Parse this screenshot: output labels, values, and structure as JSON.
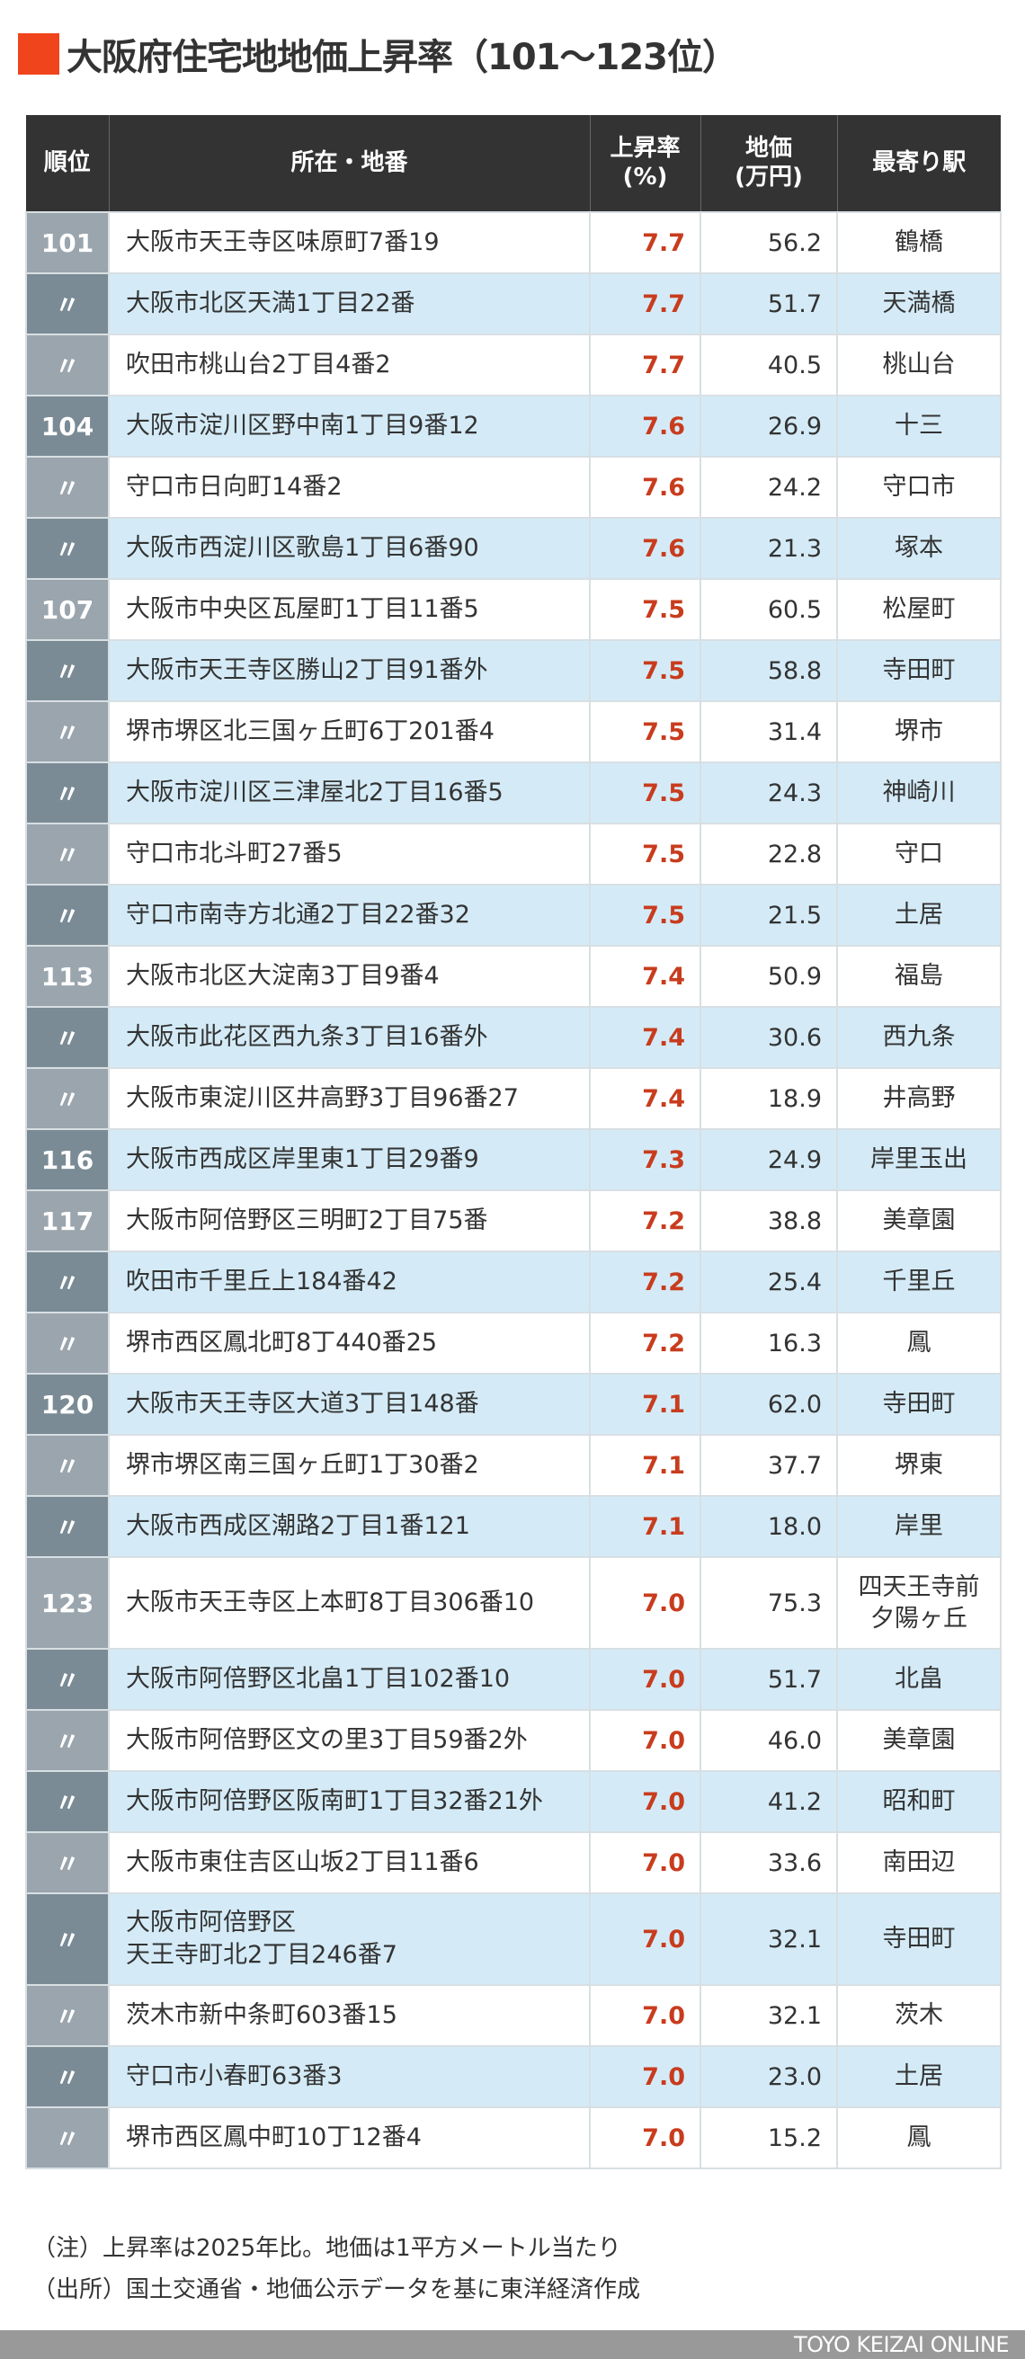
{
  "title": "大阪府住宅地地価上昇率（101〜123位）",
  "colors": {
    "accent": "#f0441c",
    "header_bg": "#333333",
    "row_alt": "#d4ebf7",
    "rank_light": "#9aa5ad",
    "rank_dark": "#7a8b95",
    "rate_text": "#c83c1e"
  },
  "table": {
    "headers": {
      "rank": "順位",
      "address": "所在・地番",
      "rate_line1": "上昇率",
      "rate_line2": "(%)",
      "price_line1": "地価",
      "price_line2": "(万円)",
      "station": "最寄り駅"
    },
    "rows": [
      {
        "rank": "101",
        "address": "大阪市天王寺区味原町7番19",
        "rate": "7.7",
        "price": "56.2",
        "station": "鶴橋"
      },
      {
        "rank": "〃",
        "address": "大阪市北区天満1丁目22番",
        "rate": "7.7",
        "price": "51.7",
        "station": "天満橋"
      },
      {
        "rank": "〃",
        "address": "吹田市桃山台2丁目4番2",
        "rate": "7.7",
        "price": "40.5",
        "station": "桃山台"
      },
      {
        "rank": "104",
        "address": "大阪市淀川区野中南1丁目9番12",
        "rate": "7.6",
        "price": "26.9",
        "station": "十三"
      },
      {
        "rank": "〃",
        "address": "守口市日向町14番2",
        "rate": "7.6",
        "price": "24.2",
        "station": "守口市"
      },
      {
        "rank": "〃",
        "address": "大阪市西淀川区歌島1丁目6番90",
        "rate": "7.6",
        "price": "21.3",
        "station": "塚本"
      },
      {
        "rank": "107",
        "address": "大阪市中央区瓦屋町1丁目11番5",
        "rate": "7.5",
        "price": "60.5",
        "station": "松屋町"
      },
      {
        "rank": "〃",
        "address": "大阪市天王寺区勝山2丁目91番外",
        "rate": "7.5",
        "price": "58.8",
        "station": "寺田町"
      },
      {
        "rank": "〃",
        "address": "堺市堺区北三国ヶ丘町6丁201番4",
        "rate": "7.5",
        "price": "31.4",
        "station": "堺市"
      },
      {
        "rank": "〃",
        "address": "大阪市淀川区三津屋北2丁目16番5",
        "rate": "7.5",
        "price": "24.3",
        "station": "神崎川"
      },
      {
        "rank": "〃",
        "address": "守口市北斗町27番5",
        "rate": "7.5",
        "price": "22.8",
        "station": "守口"
      },
      {
        "rank": "〃",
        "address": "守口市南寺方北通2丁目22番32",
        "rate": "7.5",
        "price": "21.5",
        "station": "土居"
      },
      {
        "rank": "113",
        "address": "大阪市北区大淀南3丁目9番4",
        "rate": "7.4",
        "price": "50.9",
        "station": "福島"
      },
      {
        "rank": "〃",
        "address": "大阪市此花区西九条3丁目16番外",
        "rate": "7.4",
        "price": "30.6",
        "station": "西九条"
      },
      {
        "rank": "〃",
        "address": "大阪市東淀川区井高野3丁目96番27",
        "rate": "7.4",
        "price": "18.9",
        "station": "井高野"
      },
      {
        "rank": "116",
        "address": "大阪市西成区岸里東1丁目29番9",
        "rate": "7.3",
        "price": "24.9",
        "station": "岸里玉出"
      },
      {
        "rank": "117",
        "address": "大阪市阿倍野区三明町2丁目75番",
        "rate": "7.2",
        "price": "38.8",
        "station": "美章園"
      },
      {
        "rank": "〃",
        "address": "吹田市千里丘上184番42",
        "rate": "7.2",
        "price": "25.4",
        "station": "千里丘"
      },
      {
        "rank": "〃",
        "address": "堺市西区鳳北町8丁440番25",
        "rate": "7.2",
        "price": "16.3",
        "station": "鳳"
      },
      {
        "rank": "120",
        "address": "大阪市天王寺区大道3丁目148番",
        "rate": "7.1",
        "price": "62.0",
        "station": "寺田町"
      },
      {
        "rank": "〃",
        "address": "堺市堺区南三国ヶ丘町1丁30番2",
        "rate": "7.1",
        "price": "37.7",
        "station": "堺東"
      },
      {
        "rank": "〃",
        "address": "大阪市西成区潮路2丁目1番121",
        "rate": "7.1",
        "price": "18.0",
        "station": "岸里"
      },
      {
        "rank": "123",
        "address": "大阪市天王寺区上本町8丁目306番10",
        "rate": "7.0",
        "price": "75.3",
        "station": "四天王寺前\n夕陽ヶ丘"
      },
      {
        "rank": "〃",
        "address": "大阪市阿倍野区北畠1丁目102番10",
        "rate": "7.0",
        "price": "51.7",
        "station": "北畠"
      },
      {
        "rank": "〃",
        "address": "大阪市阿倍野区文の里3丁目59番2外",
        "rate": "7.0",
        "price": "46.0",
        "station": "美章園"
      },
      {
        "rank": "〃",
        "address": "大阪市阿倍野区阪南町1丁目32番21外",
        "rate": "7.0",
        "price": "41.2",
        "station": "昭和町"
      },
      {
        "rank": "〃",
        "address": "大阪市東住吉区山坂2丁目11番6",
        "rate": "7.0",
        "price": "33.6",
        "station": "南田辺"
      },
      {
        "rank": "〃",
        "address": "大阪市阿倍野区\n天王寺町北2丁目246番7",
        "rate": "7.0",
        "price": "32.1",
        "station": "寺田町"
      },
      {
        "rank": "〃",
        "address": "茨木市新中条町603番15",
        "rate": "7.0",
        "price": "32.1",
        "station": "茨木"
      },
      {
        "rank": "〃",
        "address": "守口市小春町63番3",
        "rate": "7.0",
        "price": "23.0",
        "station": "土居"
      },
      {
        "rank": "〃",
        "address": "堺市西区鳳中町10丁12番4",
        "rate": "7.0",
        "price": "15.2",
        "station": "鳳"
      }
    ]
  },
  "notes": {
    "note": "（注）上昇率は2025年比。地価は1平方メートル当たり",
    "source": "（出所）国土交通省・地価公示データを基に東洋経済作成"
  },
  "footer": {
    "brand": "TOYO KEIZAI ONLINE"
  },
  "chart_data": {
    "type": "table",
    "title": "大阪府住宅地地価上昇率（101〜123位）",
    "columns": [
      "順位",
      "所在・地番",
      "上昇率(%)",
      "地価(万円)",
      "最寄り駅"
    ],
    "rows": [
      [
        "101",
        "大阪市天王寺区味原町7番19",
        7.7,
        56.2,
        "鶴橋"
      ],
      [
        "〃",
        "大阪市北区天満1丁目22番",
        7.7,
        51.7,
        "天満橋"
      ],
      [
        "〃",
        "吹田市桃山台2丁目4番2",
        7.7,
        40.5,
        "桃山台"
      ],
      [
        "104",
        "大阪市淀川区野中南1丁目9番12",
        7.6,
        26.9,
        "十三"
      ],
      [
        "〃",
        "守口市日向町14番2",
        7.6,
        24.2,
        "守口市"
      ],
      [
        "〃",
        "大阪市西淀川区歌島1丁目6番90",
        7.6,
        21.3,
        "塚本"
      ],
      [
        "107",
        "大阪市中央区瓦屋町1丁目11番5",
        7.5,
        60.5,
        "松屋町"
      ],
      [
        "〃",
        "大阪市天王寺区勝山2丁目91番外",
        7.5,
        58.8,
        "寺田町"
      ],
      [
        "〃",
        "堺市堺区北三国ヶ丘町6丁201番4",
        7.5,
        31.4,
        "堺市"
      ],
      [
        "〃",
        "大阪市淀川区三津屋北2丁目16番5",
        7.5,
        24.3,
        "神崎川"
      ],
      [
        "〃",
        "守口市北斗町27番5",
        7.5,
        22.8,
        "守口"
      ],
      [
        "〃",
        "守口市南寺方北通2丁目22番32",
        7.5,
        21.5,
        "土居"
      ],
      [
        "113",
        "大阪市北区大淀南3丁目9番4",
        7.4,
        50.9,
        "福島"
      ],
      [
        "〃",
        "大阪市此花区西九条3丁目16番外",
        7.4,
        30.6,
        "西九条"
      ],
      [
        "〃",
        "大阪市東淀川区井高野3丁目96番27",
        7.4,
        18.9,
        "井高野"
      ],
      [
        "116",
        "大阪市西成区岸里東1丁目29番9",
        7.3,
        24.9,
        "岸里玉出"
      ],
      [
        "117",
        "大阪市阿倍野区三明町2丁目75番",
        7.2,
        38.8,
        "美章園"
      ],
      [
        "〃",
        "吹田市千里丘上184番42",
        7.2,
        25.4,
        "千里丘"
      ],
      [
        "〃",
        "堺市西区鳳北町8丁440番25",
        7.2,
        16.3,
        "鳳"
      ],
      [
        "120",
        "大阪市天王寺区大道3丁目148番",
        7.1,
        62.0,
        "寺田町"
      ],
      [
        "〃",
        "堺市堺区南三国ヶ丘町1丁30番2",
        7.1,
        37.7,
        "堺東"
      ],
      [
        "〃",
        "大阪市西成区潮路2丁目1番121",
        7.1,
        18.0,
        "岸里"
      ],
      [
        "123",
        "大阪市天王寺区上本町8丁目306番10",
        7.0,
        75.3,
        "四天王寺前夕陽ヶ丘"
      ],
      [
        "〃",
        "大阪市阿倍野区北畠1丁目102番10",
        7.0,
        51.7,
        "北畠"
      ],
      [
        "〃",
        "大阪市阿倍野区文の里3丁目59番2外",
        7.0,
        46.0,
        "美章園"
      ],
      [
        "〃",
        "大阪市阿倍野区阪南町1丁目32番21外",
        7.0,
        41.2,
        "昭和町"
      ],
      [
        "〃",
        "大阪市東住吉区山坂2丁目11番6",
        7.0,
        33.6,
        "南田辺"
      ],
      [
        "〃",
        "大阪市阿倍野区天王寺町北2丁目246番7",
        7.0,
        32.1,
        "寺田町"
      ],
      [
        "〃",
        "茨木市新中条町603番15",
        7.0,
        32.1,
        "茨木"
      ],
      [
        "〃",
        "守口市小春町63番3",
        7.0,
        23.0,
        "土居"
      ],
      [
        "〃",
        "堺市西区鳳中町10丁12番4",
        7.0,
        15.2,
        "鳳"
      ]
    ]
  }
}
